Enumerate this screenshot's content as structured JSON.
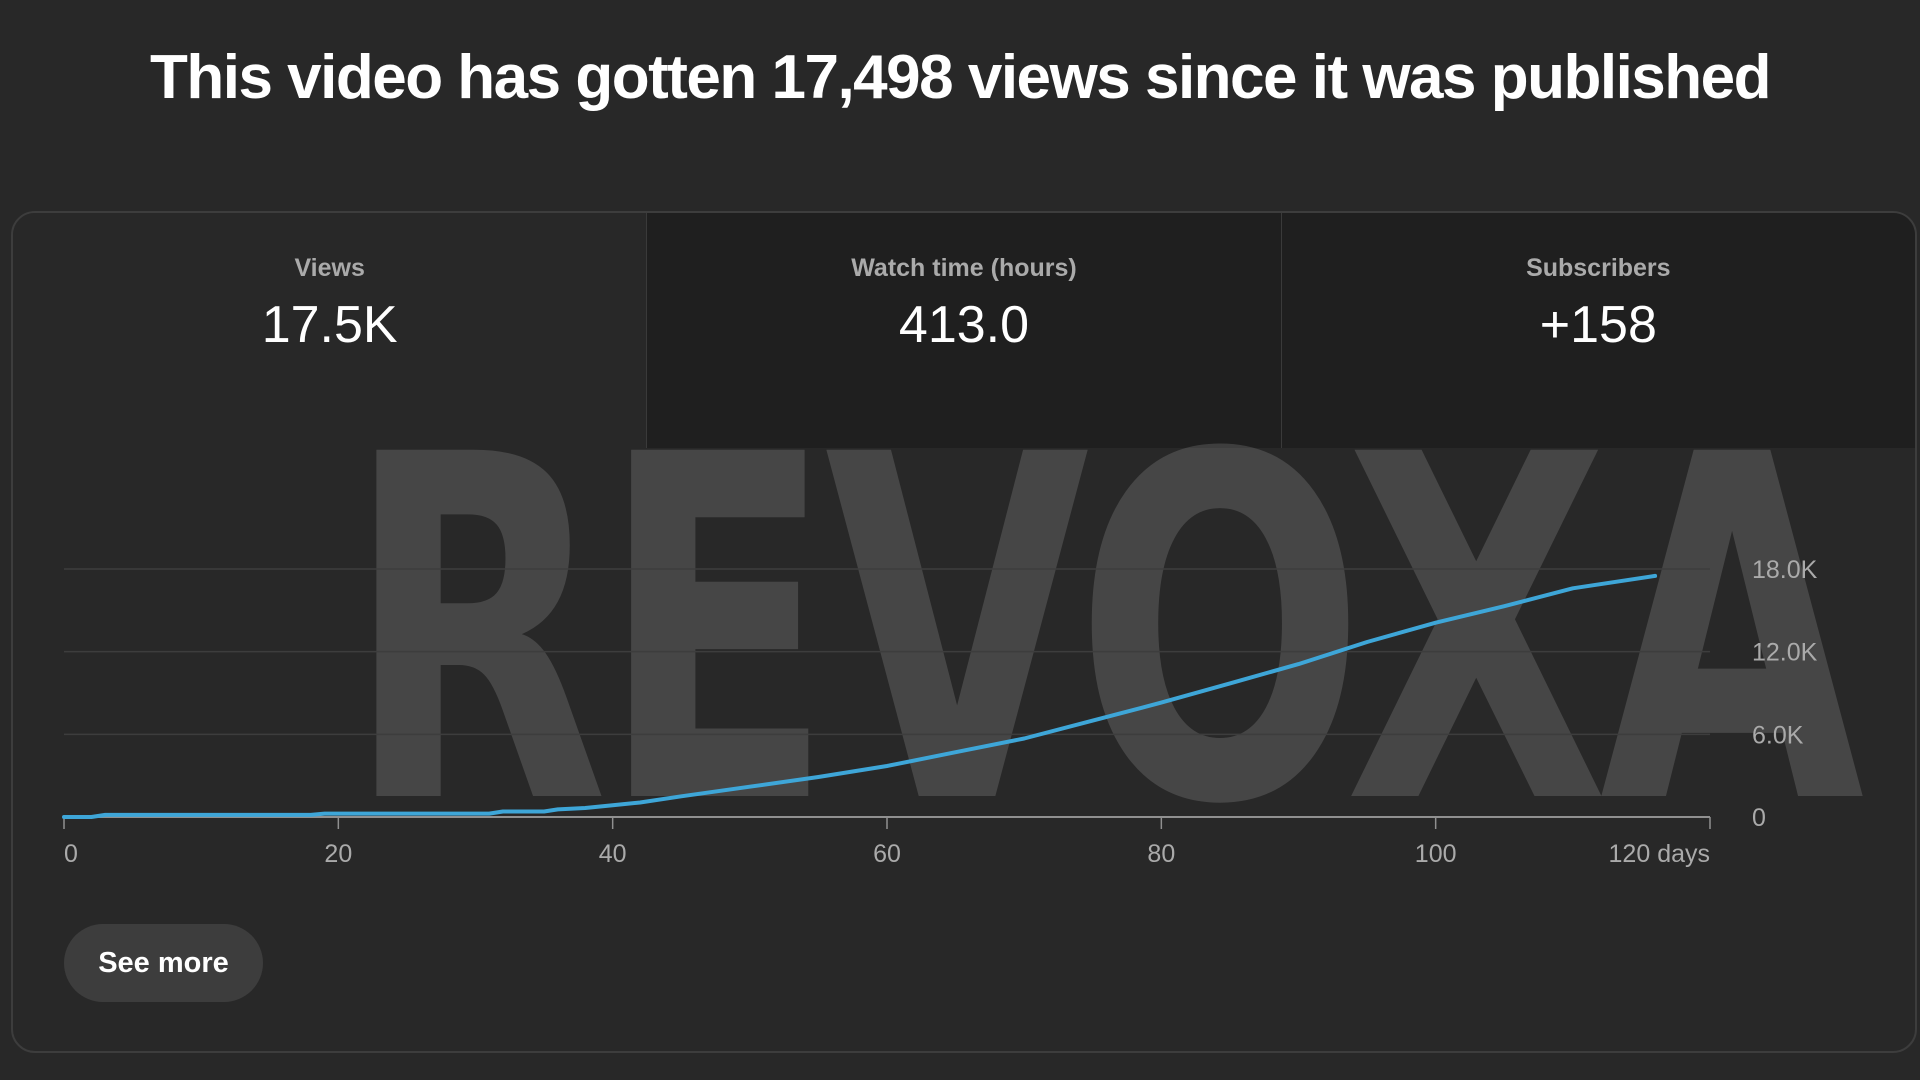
{
  "headline": "This video has gotten 17,498 views since it was published",
  "tabs": [
    {
      "label": "Views",
      "value": "17.5K",
      "active": true
    },
    {
      "label": "Watch time (hours)",
      "value": "413.0",
      "active": false
    },
    {
      "label": "Subscribers",
      "value": "+158",
      "active": false
    }
  ],
  "watermark": "REVOXA",
  "see_more_label": "See more",
  "colors": {
    "line": "#3ea6d8",
    "grid": "#3d3d3d",
    "axis": "#909090"
  },
  "chart_data": {
    "type": "line",
    "title": "",
    "xlabel": "",
    "ylabel": "",
    "x_unit_label": "days",
    "xlim": [
      0,
      120
    ],
    "ylim": [
      0,
      18000
    ],
    "x_ticks": [
      0,
      20,
      40,
      60,
      80,
      100,
      120
    ],
    "x_tick_labels": [
      "0",
      "20",
      "40",
      "60",
      "80",
      "100",
      "120 days"
    ],
    "y_ticks": [
      0,
      6000,
      12000,
      18000
    ],
    "y_tick_labels": [
      "0",
      "6.0K",
      "12.0K",
      "18.0K"
    ],
    "grid": true,
    "series": [
      {
        "x": [
          0,
          2,
          3,
          18,
          19,
          31,
          32,
          35,
          36,
          38,
          40,
          42,
          45,
          50,
          55,
          60,
          65,
          70,
          75,
          80,
          85,
          90,
          95,
          100,
          105,
          110,
          116
        ],
        "y": [
          0,
          0,
          150,
          150,
          250,
          250,
          400,
          400,
          550,
          650,
          850,
          1050,
          1500,
          2200,
          2900,
          3700,
          4700,
          5700,
          7000,
          8300,
          9700,
          11100,
          12700,
          14100,
          15300,
          16600,
          17498
        ]
      }
    ]
  }
}
